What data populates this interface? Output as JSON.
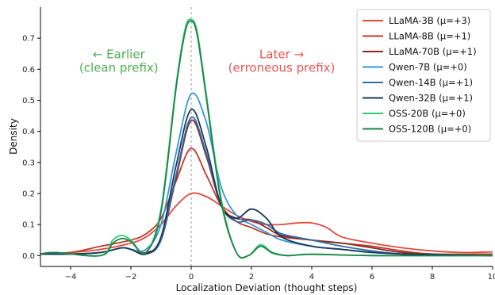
{
  "chart_data": {
    "type": "line",
    "title": "",
    "xlabel": "Localization Deviation (thought steps)",
    "ylabel": "Density",
    "xlim": [
      -5,
      10
    ],
    "ylim": [
      -0.035,
      0.8
    ],
    "xticks": [
      -4,
      -2,
      0,
      2,
      4,
      6,
      8,
      10
    ],
    "yticks": [
      0.0,
      0.1,
      0.2,
      0.3,
      0.4,
      0.5,
      0.6,
      0.7
    ],
    "grid": false,
    "legend_position": "top-right",
    "reference_line": {
      "x": 0,
      "style": "dashed",
      "color": "#999999"
    },
    "annotations": [
      {
        "lines": [
          "← Earlier",
          "(clean prefix)"
        ],
        "x": -2.4,
        "y": 0.635,
        "color": "#4caf50"
      },
      {
        "lines": [
          "Later →",
          "(erroneous prefix)"
        ],
        "x": 3.0,
        "y": 0.635,
        "color": "#ef5350"
      }
    ],
    "series": [
      {
        "name": "LLaMA-3B (μ=+3)",
        "color": "#e0493c",
        "x": [
          -5,
          -4,
          -3,
          -2,
          -1.5,
          -1,
          -0.5,
          0,
          0.5,
          1,
          1.5,
          2,
          2.5,
          3,
          3.5,
          4,
          4.5,
          5,
          6,
          7,
          8,
          9,
          10
        ],
        "y": [
          0.005,
          0.01,
          0.02,
          0.04,
          0.06,
          0.1,
          0.16,
          0.2,
          0.19,
          0.16,
          0.13,
          0.11,
          0.1,
          0.1,
          0.105,
          0.105,
          0.09,
          0.06,
          0.04,
          0.025,
          0.015,
          0.01,
          0.012
        ]
      },
      {
        "name": "LLaMA-8B (μ=+1)",
        "color": "#c0392b",
        "x": [
          -5,
          -4,
          -3,
          -2,
          -1.5,
          -1,
          -0.5,
          0,
          0.5,
          1,
          1.5,
          2,
          2.5,
          3,
          4,
          5,
          6,
          7,
          8,
          10
        ],
        "y": [
          0.005,
          0.01,
          0.03,
          0.05,
          0.07,
          0.12,
          0.24,
          0.345,
          0.26,
          0.16,
          0.11,
          0.09,
          0.07,
          0.06,
          0.05,
          0.04,
          0.03,
          0.015,
          0.005,
          0.005
        ]
      },
      {
        "name": "LLaMA-70B (μ=+1)",
        "color": "#8b2a22",
        "x": [
          -5,
          -4,
          -3,
          -2.3,
          -2,
          -1.5,
          -1,
          -0.5,
          0,
          0.5,
          1,
          1.5,
          2,
          2.5,
          3,
          4,
          5,
          6,
          7,
          8,
          10
        ],
        "y": [
          0.005,
          0.005,
          0.01,
          0.025,
          0.02,
          0.01,
          0.05,
          0.25,
          0.435,
          0.32,
          0.16,
          0.12,
          0.115,
          0.09,
          0.065,
          0.05,
          0.04,
          0.025,
          0.01,
          0.005,
          0.0
        ]
      },
      {
        "name": "Qwen-7B (μ=+0)",
        "color": "#3498db",
        "x": [
          -5,
          -4,
          -3,
          -2.3,
          -2,
          -1.5,
          -1,
          -0.5,
          0,
          0.5,
          1,
          1.5,
          2,
          2.5,
          3,
          4,
          5,
          6,
          7,
          8,
          10
        ],
        "y": [
          0.005,
          0.005,
          0.01,
          0.025,
          0.02,
          0.02,
          0.1,
          0.33,
          0.52,
          0.43,
          0.22,
          0.13,
          0.1,
          0.075,
          0.05,
          0.03,
          0.02,
          0.01,
          0.005,
          0.003,
          0.0
        ]
      },
      {
        "name": "Qwen-14B (μ=+1)",
        "color": "#2e6fa8",
        "x": [
          -5,
          -4,
          -3,
          -2.3,
          -2,
          -1.5,
          -1,
          -0.5,
          0,
          0.5,
          1,
          1.5,
          2,
          2.5,
          3,
          4,
          5,
          6,
          7,
          8,
          10
        ],
        "y": [
          0.005,
          0.005,
          0.01,
          0.025,
          0.02,
          0.005,
          0.05,
          0.26,
          0.445,
          0.33,
          0.16,
          0.11,
          0.115,
          0.1,
          0.07,
          0.05,
          0.03,
          0.015,
          0.005,
          0.003,
          0.0
        ]
      },
      {
        "name": "Qwen-32B (μ=+1)",
        "color": "#1b3a57",
        "x": [
          -5,
          -4,
          -3,
          -2.3,
          -2,
          -1.5,
          -1,
          -0.5,
          0,
          0.5,
          1,
          1.5,
          2,
          2.5,
          3,
          4,
          5,
          6,
          7,
          8,
          10
        ],
        "y": [
          0.005,
          0.005,
          0.01,
          0.025,
          0.02,
          0.005,
          0.06,
          0.29,
          0.47,
          0.35,
          0.16,
          0.12,
          0.15,
          0.12,
          0.06,
          0.03,
          0.02,
          0.01,
          0.005,
          0.003,
          0.0
        ]
      },
      {
        "name": "OSS-20B (μ=+0)",
        "color": "#2ecc71",
        "x": [
          -5,
          -4.5,
          -3,
          -2.6,
          -2.3,
          -2,
          -1.5,
          -1,
          -0.5,
          -0.2,
          0,
          0.2,
          0.5,
          1,
          1.5,
          1.9,
          2.3,
          2.7,
          3.2,
          4,
          6,
          10
        ],
        "y": [
          0.005,
          0.01,
          0.0,
          0.05,
          0.065,
          0.05,
          0.01,
          0.15,
          0.55,
          0.73,
          0.76,
          0.72,
          0.52,
          0.18,
          0.01,
          0.0,
          0.035,
          0.01,
          0.0,
          0.005,
          0.0,
          0.0
        ]
      },
      {
        "name": "OSS-120B (μ=+0)",
        "color": "#1e8449",
        "x": [
          -5,
          -4.5,
          -3,
          -2.6,
          -2.3,
          -2,
          -1.5,
          -1,
          -0.5,
          -0.2,
          0,
          0.2,
          0.5,
          1,
          1.5,
          1.9,
          2.3,
          2.7,
          3.2,
          4,
          6,
          10
        ],
        "y": [
          0.005,
          0.01,
          0.0,
          0.04,
          0.055,
          0.045,
          0.01,
          0.14,
          0.54,
          0.72,
          0.755,
          0.71,
          0.51,
          0.17,
          0.01,
          0.0,
          0.03,
          0.008,
          0.0,
          0.004,
          0.0,
          0.0
        ]
      }
    ]
  }
}
